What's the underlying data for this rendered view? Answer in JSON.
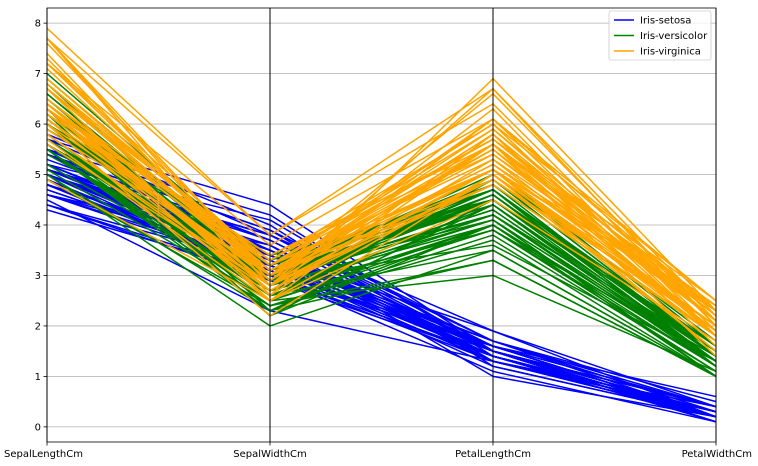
{
  "chart_data": {
    "type": "line",
    "subtype": "parallel-coordinates",
    "title": "",
    "xlabel": "",
    "ylabel": "",
    "categories": [
      "SepalLengthCm",
      "SepalWidthCm",
      "PetalLengthCm",
      "PetalWidthCm"
    ],
    "ylim": [
      -0.3,
      8.3
    ],
    "yticks": [
      0,
      1,
      2,
      3,
      4,
      5,
      6,
      7,
      8
    ],
    "grid": true,
    "legend_position": "top-right",
    "series": [
      {
        "name": "Iris-setosa",
        "color": "#0000ff",
        "values": [
          [
            5.1,
            3.5,
            1.4,
            0.2
          ],
          [
            4.9,
            3.0,
            1.4,
            0.2
          ],
          [
            4.7,
            3.2,
            1.3,
            0.2
          ],
          [
            4.6,
            3.1,
            1.5,
            0.2
          ],
          [
            5.0,
            3.6,
            1.4,
            0.2
          ],
          [
            5.4,
            3.9,
            1.7,
            0.4
          ],
          [
            4.6,
            3.4,
            1.4,
            0.3
          ],
          [
            5.0,
            3.4,
            1.5,
            0.2
          ],
          [
            4.4,
            2.9,
            1.4,
            0.2
          ],
          [
            4.9,
            3.1,
            1.5,
            0.1
          ],
          [
            5.4,
            3.7,
            1.5,
            0.2
          ],
          [
            4.8,
            3.4,
            1.6,
            0.2
          ],
          [
            4.8,
            3.0,
            1.4,
            0.1
          ],
          [
            4.3,
            3.0,
            1.1,
            0.1
          ],
          [
            5.8,
            4.0,
            1.2,
            0.2
          ],
          [
            5.7,
            4.4,
            1.5,
            0.4
          ],
          [
            5.4,
            3.9,
            1.3,
            0.4
          ],
          [
            5.1,
            3.5,
            1.4,
            0.3
          ],
          [
            5.7,
            3.8,
            1.7,
            0.3
          ],
          [
            5.1,
            3.8,
            1.5,
            0.3
          ],
          [
            5.4,
            3.4,
            1.7,
            0.2
          ],
          [
            5.1,
            3.7,
            1.5,
            0.4
          ],
          [
            4.6,
            3.6,
            1.0,
            0.2
          ],
          [
            5.1,
            3.3,
            1.7,
            0.5
          ],
          [
            4.8,
            3.4,
            1.9,
            0.2
          ],
          [
            5.0,
            3.0,
            1.6,
            0.2
          ],
          [
            5.0,
            3.4,
            1.6,
            0.4
          ],
          [
            5.2,
            3.5,
            1.5,
            0.2
          ],
          [
            5.2,
            3.4,
            1.4,
            0.2
          ],
          [
            4.7,
            3.2,
            1.6,
            0.2
          ],
          [
            4.8,
            3.1,
            1.6,
            0.2
          ],
          [
            5.4,
            3.4,
            1.5,
            0.4
          ],
          [
            5.2,
            4.1,
            1.5,
            0.1
          ],
          [
            5.5,
            4.2,
            1.4,
            0.2
          ],
          [
            4.9,
            3.1,
            1.5,
            0.1
          ],
          [
            5.0,
            3.2,
            1.2,
            0.2
          ],
          [
            5.5,
            3.5,
            1.3,
            0.2
          ],
          [
            4.9,
            3.1,
            1.5,
            0.1
          ],
          [
            4.4,
            3.0,
            1.3,
            0.2
          ],
          [
            5.1,
            3.4,
            1.5,
            0.2
          ],
          [
            5.0,
            3.5,
            1.3,
            0.3
          ],
          [
            4.5,
            2.3,
            1.3,
            0.3
          ],
          [
            4.4,
            3.2,
            1.3,
            0.2
          ],
          [
            5.0,
            3.5,
            1.6,
            0.6
          ],
          [
            5.1,
            3.8,
            1.9,
            0.4
          ],
          [
            4.8,
            3.0,
            1.4,
            0.3
          ],
          [
            5.1,
            3.8,
            1.6,
            0.2
          ],
          [
            4.6,
            3.2,
            1.4,
            0.2
          ],
          [
            5.3,
            3.7,
            1.5,
            0.2
          ],
          [
            5.0,
            3.3,
            1.4,
            0.2
          ]
        ]
      },
      {
        "name": "Iris-versicolor",
        "color": "#008000",
        "values": [
          [
            7.0,
            3.2,
            4.7,
            1.4
          ],
          [
            6.4,
            3.2,
            4.5,
            1.5
          ],
          [
            6.9,
            3.1,
            4.9,
            1.5
          ],
          [
            5.5,
            2.3,
            4.0,
            1.3
          ],
          [
            6.5,
            2.8,
            4.6,
            1.5
          ],
          [
            5.7,
            2.8,
            4.5,
            1.3
          ],
          [
            6.3,
            3.3,
            4.7,
            1.6
          ],
          [
            4.9,
            2.4,
            3.3,
            1.0
          ],
          [
            6.6,
            2.9,
            4.6,
            1.3
          ],
          [
            5.2,
            2.7,
            3.9,
            1.4
          ],
          [
            5.0,
            2.0,
            3.5,
            1.0
          ],
          [
            5.9,
            3.0,
            4.2,
            1.5
          ],
          [
            6.0,
            2.2,
            4.0,
            1.0
          ],
          [
            6.1,
            2.9,
            4.7,
            1.4
          ],
          [
            5.6,
            2.9,
            3.6,
            1.3
          ],
          [
            6.7,
            3.1,
            4.4,
            1.4
          ],
          [
            5.6,
            3.0,
            4.5,
            1.5
          ],
          [
            5.8,
            2.7,
            4.1,
            1.0
          ],
          [
            6.2,
            2.2,
            4.5,
            1.5
          ],
          [
            5.6,
            2.5,
            3.9,
            1.1
          ],
          [
            5.9,
            3.2,
            4.8,
            1.8
          ],
          [
            6.1,
            2.8,
            4.0,
            1.3
          ],
          [
            6.3,
            2.5,
            4.9,
            1.5
          ],
          [
            6.1,
            2.8,
            4.7,
            1.2
          ],
          [
            6.4,
            2.9,
            4.3,
            1.3
          ],
          [
            6.6,
            3.0,
            4.4,
            1.4
          ],
          [
            6.8,
            2.8,
            4.8,
            1.4
          ],
          [
            6.7,
            3.0,
            5.0,
            1.7
          ],
          [
            6.0,
            2.9,
            4.5,
            1.5
          ],
          [
            5.7,
            2.6,
            3.5,
            1.0
          ],
          [
            5.5,
            2.4,
            3.8,
            1.1
          ],
          [
            5.5,
            2.4,
            3.7,
            1.0
          ],
          [
            5.8,
            2.7,
            3.9,
            1.2
          ],
          [
            6.0,
            2.7,
            5.1,
            1.6
          ],
          [
            5.4,
            3.0,
            4.5,
            1.5
          ],
          [
            6.0,
            3.4,
            4.5,
            1.6
          ],
          [
            6.7,
            3.1,
            4.7,
            1.5
          ],
          [
            6.3,
            2.3,
            4.4,
            1.3
          ],
          [
            5.6,
            3.0,
            4.1,
            1.3
          ],
          [
            5.5,
            2.5,
            4.0,
            1.3
          ],
          [
            5.5,
            2.6,
            4.4,
            1.2
          ],
          [
            6.1,
            3.0,
            4.6,
            1.4
          ],
          [
            5.8,
            2.6,
            4.0,
            1.2
          ],
          [
            5.0,
            2.3,
            3.3,
            1.0
          ],
          [
            5.6,
            2.7,
            4.2,
            1.3
          ],
          [
            5.7,
            3.0,
            4.2,
            1.2
          ],
          [
            5.7,
            2.9,
            4.2,
            1.3
          ],
          [
            6.2,
            2.9,
            4.3,
            1.3
          ],
          [
            5.1,
            2.5,
            3.0,
            1.1
          ],
          [
            5.7,
            2.8,
            4.1,
            1.3
          ]
        ]
      },
      {
        "name": "Iris-virginica",
        "color": "#ffa500",
        "values": [
          [
            6.3,
            3.3,
            6.0,
            2.5
          ],
          [
            5.8,
            2.7,
            5.1,
            1.9
          ],
          [
            7.1,
            3.0,
            5.9,
            2.1
          ],
          [
            6.3,
            2.9,
            5.6,
            1.8
          ],
          [
            6.5,
            3.0,
            5.8,
            2.2
          ],
          [
            7.6,
            3.0,
            6.6,
            2.1
          ],
          [
            4.9,
            2.5,
            4.5,
            1.7
          ],
          [
            7.3,
            2.9,
            6.3,
            1.8
          ],
          [
            6.7,
            2.5,
            5.8,
            1.8
          ],
          [
            7.2,
            3.6,
            6.1,
            2.5
          ],
          [
            6.5,
            3.2,
            5.1,
            2.0
          ],
          [
            6.4,
            2.7,
            5.3,
            1.9
          ],
          [
            6.8,
            3.0,
            5.5,
            2.1
          ],
          [
            5.7,
            2.5,
            5.0,
            2.0
          ],
          [
            5.8,
            2.8,
            5.1,
            2.4
          ],
          [
            6.4,
            3.2,
            5.3,
            2.3
          ],
          [
            6.5,
            3.0,
            5.5,
            1.8
          ],
          [
            7.7,
            3.8,
            6.7,
            2.2
          ],
          [
            7.7,
            2.6,
            6.9,
            2.3
          ],
          [
            6.0,
            2.2,
            5.0,
            1.5
          ],
          [
            6.9,
            3.2,
            5.7,
            2.3
          ],
          [
            5.6,
            2.8,
            4.9,
            2.0
          ],
          [
            7.7,
            2.8,
            6.7,
            2.0
          ],
          [
            6.3,
            2.7,
            4.9,
            1.8
          ],
          [
            6.7,
            3.3,
            5.7,
            2.1
          ],
          [
            7.2,
            3.2,
            6.0,
            1.8
          ],
          [
            6.2,
            2.8,
            4.8,
            1.8
          ],
          [
            6.1,
            3.0,
            4.9,
            1.8
          ],
          [
            6.4,
            2.8,
            5.6,
            2.1
          ],
          [
            7.2,
            3.0,
            5.8,
            1.6
          ],
          [
            7.4,
            2.8,
            6.1,
            1.9
          ],
          [
            7.9,
            3.8,
            6.4,
            2.0
          ],
          [
            6.4,
            2.8,
            5.6,
            2.2
          ],
          [
            6.3,
            2.8,
            5.1,
            1.5
          ],
          [
            6.1,
            2.6,
            5.6,
            1.4
          ],
          [
            7.7,
            3.0,
            6.1,
            2.3
          ],
          [
            6.3,
            3.4,
            5.6,
            2.4
          ],
          [
            6.4,
            3.1,
            5.5,
            1.8
          ],
          [
            6.0,
            3.0,
            4.8,
            1.8
          ],
          [
            6.9,
            3.1,
            5.4,
            2.1
          ],
          [
            6.7,
            3.1,
            5.6,
            2.4
          ],
          [
            6.9,
            3.1,
            5.1,
            2.3
          ],
          [
            5.8,
            2.7,
            5.1,
            1.9
          ],
          [
            6.8,
            3.2,
            5.9,
            2.3
          ],
          [
            6.7,
            3.3,
            5.7,
            2.5
          ],
          [
            6.7,
            3.0,
            5.2,
            2.3
          ],
          [
            6.3,
            2.5,
            5.0,
            1.9
          ],
          [
            6.5,
            3.0,
            5.2,
            2.0
          ],
          [
            6.2,
            3.4,
            5.4,
            2.3
          ],
          [
            5.9,
            3.0,
            5.1,
            1.8
          ]
        ]
      }
    ]
  }
}
